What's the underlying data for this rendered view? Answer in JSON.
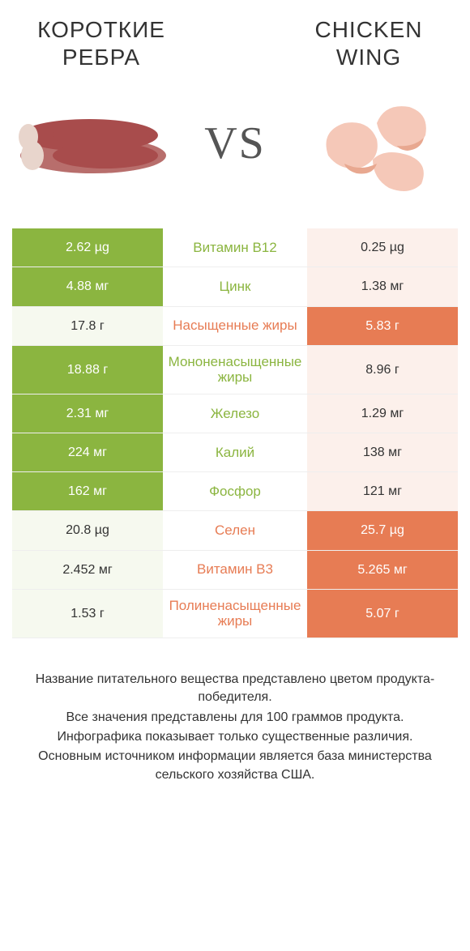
{
  "header": {
    "left_title": "КОРОТКИЕ РЕБРА",
    "right_title": "CHICKEN WING",
    "vs": "VS"
  },
  "colors": {
    "green": "#8bb540",
    "orange": "#e77c54",
    "green_light": "#f6f9ef",
    "orange_light": "#fcf0eb",
    "text": "#333333",
    "bg": "#ffffff"
  },
  "rows": [
    {
      "left": "2.62 µg",
      "mid": "Витамин B12",
      "right": "0.25 µg",
      "winner": "left"
    },
    {
      "left": "4.88 мг",
      "mid": "Цинк",
      "right": "1.38 мг",
      "winner": "left"
    },
    {
      "left": "17.8 г",
      "mid": "Насыщенные жиры",
      "right": "5.83 г",
      "winner": "right"
    },
    {
      "left": "18.88 г",
      "mid": "Мононенасыщенные жиры",
      "right": "8.96 г",
      "winner": "left"
    },
    {
      "left": "2.31 мг",
      "mid": "Железо",
      "right": "1.29 мг",
      "winner": "left"
    },
    {
      "left": "224 мг",
      "mid": "Калий",
      "right": "138 мг",
      "winner": "left"
    },
    {
      "left": "162 мг",
      "mid": "Фосфор",
      "right": "121 мг",
      "winner": "left"
    },
    {
      "left": "20.8 µg",
      "mid": "Селен",
      "right": "25.7 µg",
      "winner": "right"
    },
    {
      "left": "2.452 мг",
      "mid": "Витамин B3",
      "right": "5.265 мг",
      "winner": "right"
    },
    {
      "left": "1.53 г",
      "mid": "Полиненасыщенные жиры",
      "right": "5.07 г",
      "winner": "right"
    }
  ],
  "footer": {
    "line1": "Название питательного вещества представлено цветом продукта-победителя.",
    "line2": "Все значения представлены для 100 граммов продукта.",
    "line3": "Инфографика показывает только существенные различия.",
    "line4": "Основным источником информации является база министерства сельского хозяйства США."
  }
}
